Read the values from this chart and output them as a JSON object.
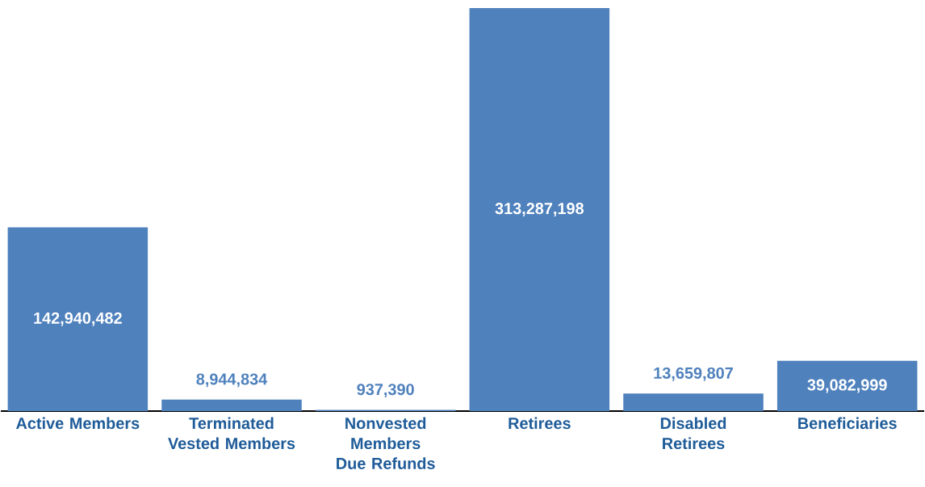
{
  "chart_data": {
    "type": "bar",
    "categories": [
      "Active Members",
      "Terminated Vested Members",
      "Nonvested Members Due Refunds",
      "Retirees",
      "Disabled Retirees",
      "Beneficiaries"
    ],
    "values": [
      142940482,
      8944834,
      937390,
      313287198,
      13659807,
      39082999
    ],
    "value_labels": [
      "142,940,482",
      "8,944,834",
      "937,390",
      "313,287,198",
      "13,659,807",
      "39,082,999"
    ],
    "color": "#4f81bd"
  }
}
